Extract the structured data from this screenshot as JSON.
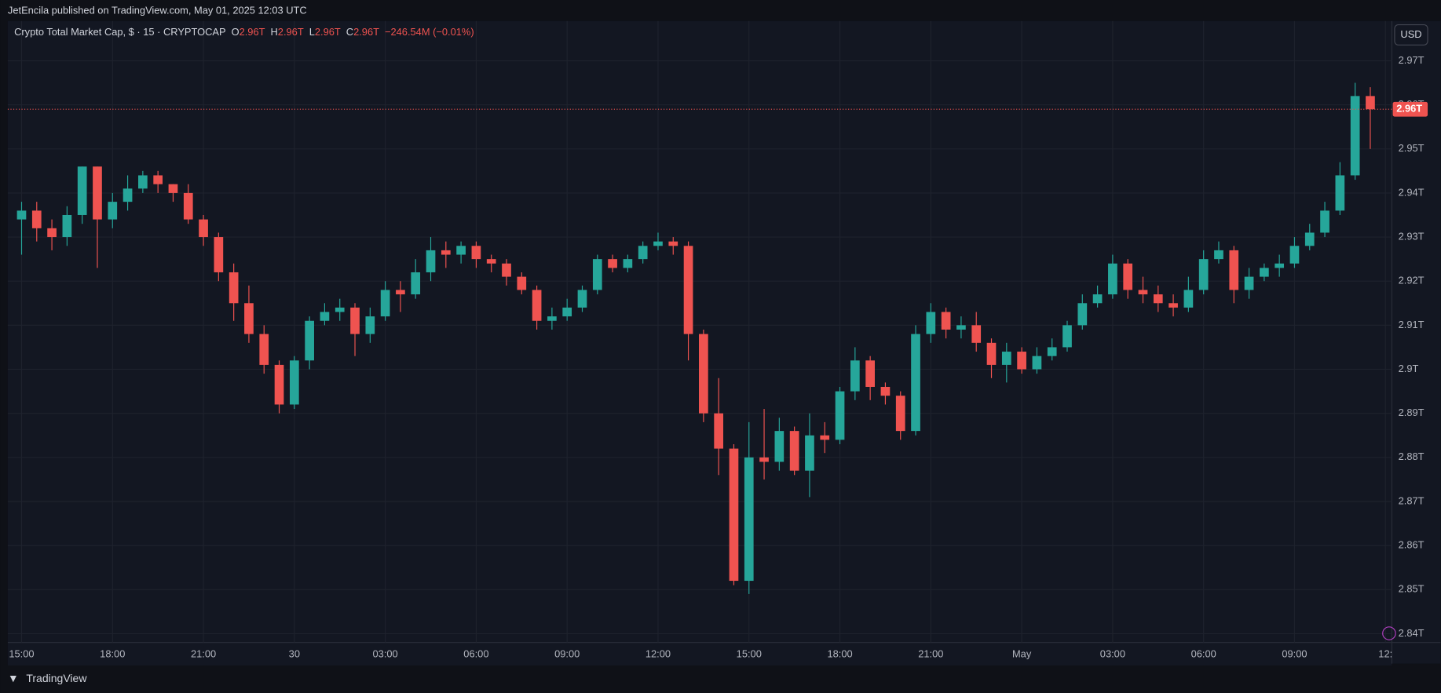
{
  "header": "JetEncila published on TradingView.com, May 01, 2025 12:03 UTC",
  "footer": "TradingView",
  "currency_button": "USD",
  "chart_data": {
    "type": "candlestick",
    "title": "Crypto Total Market Cap, $ · 15 · CRYPTOCAP",
    "ohlc_legend": [
      {
        "key": "O",
        "value": "2.96T"
      },
      {
        "key": "H",
        "value": "2.96T"
      },
      {
        "key": "L",
        "value": "2.96T"
      },
      {
        "key": "C",
        "value": "2.96T"
      }
    ],
    "change": "−246.54M (−0.01%)",
    "last_label": "2.96T",
    "up_color": "#26a69a",
    "down_color": "#ef5350",
    "ylim": [
      2.838,
      2.979
    ],
    "yticks": [
      {
        "value": 2.97,
        "label": "2.97T"
      },
      {
        "value": 2.96,
        "label": "2.96T"
      },
      {
        "value": 2.95,
        "label": "2.95T"
      },
      {
        "value": 2.94,
        "label": "2.94T"
      },
      {
        "value": 2.93,
        "label": "2.93T"
      },
      {
        "value": 2.92,
        "label": "2.92T"
      },
      {
        "value": 2.91,
        "label": "2.91T"
      },
      {
        "value": 2.9,
        "label": "2.9T"
      },
      {
        "value": 2.89,
        "label": "2.89T"
      },
      {
        "value": 2.88,
        "label": "2.88T"
      },
      {
        "value": 2.87,
        "label": "2.87T"
      },
      {
        "value": 2.86,
        "label": "2.86T"
      },
      {
        "value": 2.85,
        "label": "2.85T"
      },
      {
        "value": 2.84,
        "label": "2.84T"
      }
    ],
    "x_labels": [
      "15:00",
      "18:00",
      "21:00",
      "30",
      "03:00",
      "06:00",
      "09:00",
      "12:00",
      "15:00",
      "18:00",
      "21:00",
      "May",
      "03:00",
      "06:00",
      "09:00",
      "12:"
    ],
    "grid": true,
    "candles": [
      [
        2.934,
        2.938,
        2.926,
        2.936
      ],
      [
        2.936,
        2.938,
        2.929,
        2.932
      ],
      [
        2.932,
        2.934,
        2.927,
        2.93
      ],
      [
        2.93,
        2.937,
        2.928,
        2.935
      ],
      [
        2.935,
        2.946,
        2.933,
        2.946
      ],
      [
        2.946,
        2.946,
        2.923,
        2.934
      ],
      [
        2.934,
        2.94,
        2.932,
        2.938
      ],
      [
        2.938,
        2.944,
        2.936,
        2.941
      ],
      [
        2.941,
        2.945,
        2.94,
        2.944
      ],
      [
        2.944,
        2.945,
        2.94,
        2.942
      ],
      [
        2.942,
        2.942,
        2.938,
        2.94
      ],
      [
        2.94,
        2.942,
        2.933,
        2.934
      ],
      [
        2.934,
        2.935,
        2.928,
        2.93
      ],
      [
        2.93,
        2.931,
        2.92,
        2.922
      ],
      [
        2.922,
        2.924,
        2.911,
        2.915
      ],
      [
        2.915,
        2.919,
        2.906,
        2.908
      ],
      [
        2.908,
        2.91,
        2.899,
        2.901
      ],
      [
        2.901,
        2.902,
        2.89,
        2.892
      ],
      [
        2.892,
        2.903,
        2.891,
        2.902
      ],
      [
        2.902,
        2.912,
        2.9,
        2.911
      ],
      [
        2.911,
        2.915,
        2.91,
        2.913
      ],
      [
        2.913,
        2.916,
        2.911,
        2.914
      ],
      [
        2.914,
        2.915,
        2.903,
        2.908
      ],
      [
        2.908,
        2.914,
        2.906,
        2.912
      ],
      [
        2.912,
        2.92,
        2.911,
        2.918
      ],
      [
        2.918,
        2.92,
        2.913,
        2.917
      ],
      [
        2.917,
        2.925,
        2.916,
        2.922
      ],
      [
        2.922,
        2.93,
        2.92,
        2.927
      ],
      [
        2.927,
        2.929,
        2.923,
        2.926
      ],
      [
        2.926,
        2.929,
        2.924,
        2.928
      ],
      [
        2.928,
        2.929,
        2.923,
        2.925
      ],
      [
        2.925,
        2.926,
        2.922,
        2.924
      ],
      [
        2.924,
        2.925,
        2.919,
        2.921
      ],
      [
        2.921,
        2.922,
        2.917,
        2.918
      ],
      [
        2.918,
        2.919,
        2.909,
        2.911
      ],
      [
        2.911,
        2.914,
        2.909,
        2.912
      ],
      [
        2.912,
        2.916,
        2.911,
        2.914
      ],
      [
        2.914,
        2.919,
        2.913,
        2.918
      ],
      [
        2.918,
        2.926,
        2.917,
        2.925
      ],
      [
        2.925,
        2.926,
        2.922,
        2.923
      ],
      [
        2.923,
        2.926,
        2.922,
        2.925
      ],
      [
        2.925,
        2.929,
        2.924,
        2.928
      ],
      [
        2.928,
        2.931,
        2.927,
        2.929
      ],
      [
        2.929,
        2.93,
        2.926,
        2.928
      ],
      [
        2.928,
        2.929,
        2.902,
        2.908
      ],
      [
        2.908,
        2.909,
        2.888,
        2.89
      ],
      [
        2.89,
        2.898,
        2.876,
        2.882
      ],
      [
        2.882,
        2.883,
        2.851,
        2.852
      ],
      [
        2.852,
        2.888,
        2.849,
        2.88
      ],
      [
        2.88,
        2.891,
        2.875,
        2.879
      ],
      [
        2.879,
        2.889,
        2.877,
        2.886
      ],
      [
        2.886,
        2.887,
        2.876,
        2.877
      ],
      [
        2.877,
        2.89,
        2.871,
        2.885
      ],
      [
        2.885,
        2.888,
        2.881,
        2.884
      ],
      [
        2.884,
        2.896,
        2.883,
        2.895
      ],
      [
        2.895,
        2.905,
        2.893,
        2.902
      ],
      [
        2.902,
        2.903,
        2.893,
        2.896
      ],
      [
        2.896,
        2.897,
        2.892,
        2.894
      ],
      [
        2.894,
        2.895,
        2.884,
        2.886
      ],
      [
        2.886,
        2.91,
        2.885,
        2.908
      ],
      [
        2.908,
        2.915,
        2.906,
        2.913
      ],
      [
        2.913,
        2.914,
        2.907,
        2.909
      ],
      [
        2.909,
        2.912,
        2.907,
        2.91
      ],
      [
        2.91,
        2.913,
        2.904,
        2.906
      ],
      [
        2.906,
        2.907,
        2.898,
        2.901
      ],
      [
        2.901,
        2.906,
        2.897,
        2.904
      ],
      [
        2.904,
        2.905,
        2.899,
        2.9
      ],
      [
        2.9,
        2.905,
        2.899,
        2.903
      ],
      [
        2.903,
        2.907,
        2.902,
        2.905
      ],
      [
        2.905,
        2.911,
        2.904,
        2.91
      ],
      [
        2.91,
        2.917,
        2.909,
        2.915
      ],
      [
        2.915,
        2.919,
        2.914,
        2.917
      ],
      [
        2.917,
        2.926,
        2.916,
        2.924
      ],
      [
        2.924,
        2.925,
        2.916,
        2.918
      ],
      [
        2.918,
        2.921,
        2.915,
        2.917
      ],
      [
        2.917,
        2.919,
        2.913,
        2.915
      ],
      [
        2.915,
        2.917,
        2.912,
        2.914
      ],
      [
        2.914,
        2.921,
        2.913,
        2.918
      ],
      [
        2.918,
        2.927,
        2.917,
        2.925
      ],
      [
        2.925,
        2.929,
        2.924,
        2.927
      ],
      [
        2.927,
        2.928,
        2.915,
        2.918
      ],
      [
        2.918,
        2.923,
        2.916,
        2.921
      ],
      [
        2.921,
        2.924,
        2.92,
        2.923
      ],
      [
        2.923,
        2.926,
        2.921,
        2.924
      ],
      [
        2.924,
        2.93,
        2.923,
        2.928
      ],
      [
        2.928,
        2.933,
        2.927,
        2.931
      ],
      [
        2.931,
        2.938,
        2.93,
        2.936
      ],
      [
        2.936,
        2.947,
        2.935,
        2.944
      ],
      [
        2.944,
        2.965,
        2.943,
        2.962
      ],
      [
        2.962,
        2.964,
        2.95,
        2.959
      ]
    ]
  }
}
